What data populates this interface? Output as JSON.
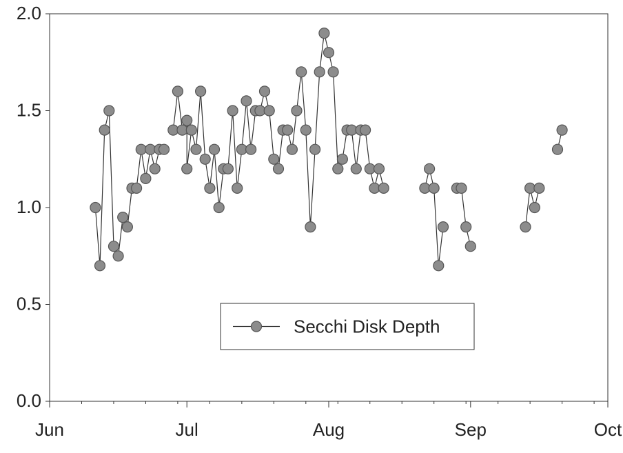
{
  "chart_data": {
    "type": "line",
    "title": "",
    "xlabel": "",
    "ylabel": "",
    "ylim": [
      0,
      2.0
    ],
    "xlim": [
      "Jun 1",
      "Oct 1"
    ],
    "grid": false,
    "legend_position": "bottom-center",
    "y_ticks": [
      "0.0",
      "0.5",
      "1.0",
      "1.5",
      "2.0"
    ],
    "x_ticks": [
      {
        "label": "Jun",
        "date": "Jun 1"
      },
      {
        "label": "Jul",
        "date": "Jul 1"
      },
      {
        "label": "Aug",
        "date": "Aug 1"
      },
      {
        "label": "Sep",
        "date": "Sep 1"
      },
      {
        "label": "Oct",
        "date": "Oct 1"
      }
    ],
    "colors": {
      "marker_fill": "#8c8c8c",
      "marker_stroke": "#555555",
      "line": "#333333",
      "axis": "#333333",
      "text": "#222222"
    },
    "series": [
      {
        "name": "Secchi Disk Depth",
        "segments": [
          [
            {
              "x": "Jun 11",
              "y": 1.0
            },
            {
              "x": "Jun 12",
              "y": 0.7
            },
            {
              "x": "Jun 13",
              "y": 1.4
            },
            {
              "x": "Jun 14",
              "y": 1.5
            },
            {
              "x": "Jun 15",
              "y": 0.8
            },
            {
              "x": "Jun 16",
              "y": 0.75
            },
            {
              "x": "Jun 17",
              "y": 0.95
            },
            {
              "x": "Jun 18",
              "y": 0.9
            },
            {
              "x": "Jun 19",
              "y": 1.1
            },
            {
              "x": "Jun 20",
              "y": 1.1
            },
            {
              "x": "Jun 21",
              "y": 1.3
            },
            {
              "x": "Jun 22",
              "y": 1.15
            },
            {
              "x": "Jun 23",
              "y": 1.3
            },
            {
              "x": "Jun 24",
              "y": 1.2
            },
            {
              "x": "Jun 25",
              "y": 1.3
            },
            {
              "x": "Jun 26",
              "y": 1.3
            }
          ],
          [
            {
              "x": "Jun 28",
              "y": 1.4
            },
            {
              "x": "Jun 29",
              "y": 1.6
            },
            {
              "x": "Jun 30",
              "y": 1.4
            },
            {
              "x": "Jun 31",
              "y": 1.45
            },
            {
              "x": "Jul 1",
              "y": 1.2
            },
            {
              "x": "Jul 2",
              "y": 1.4
            },
            {
              "x": "Jul 3",
              "y": 1.3
            },
            {
              "x": "Jul 4",
              "y": 1.6
            },
            {
              "x": "Jul 5",
              "y": 1.25
            },
            {
              "x": "Jul 6",
              "y": 1.1
            },
            {
              "x": "Jul 7",
              "y": 1.3
            },
            {
              "x": "Jul 8",
              "y": 1.0
            },
            {
              "x": "Jul 9",
              "y": 1.2
            },
            {
              "x": "Jul 10",
              "y": 1.2
            },
            {
              "x": "Jul 11",
              "y": 1.5
            },
            {
              "x": "Jul 12",
              "y": 1.1
            },
            {
              "x": "Jul 13",
              "y": 1.3
            },
            {
              "x": "Jul 14",
              "y": 1.55
            },
            {
              "x": "Jul 15",
              "y": 1.3
            },
            {
              "x": "Jul 16",
              "y": 1.5
            },
            {
              "x": "Jul 17",
              "y": 1.5
            },
            {
              "x": "Jul 18",
              "y": 1.6
            },
            {
              "x": "Jul 19",
              "y": 1.5
            },
            {
              "x": "Jul 20",
              "y": 1.25
            },
            {
              "x": "Jul 21",
              "y": 1.2
            },
            {
              "x": "Jul 22",
              "y": 1.4
            },
            {
              "x": "Jul 23",
              "y": 1.4
            },
            {
              "x": "Jul 24",
              "y": 1.3
            },
            {
              "x": "Jul 25",
              "y": 1.5
            },
            {
              "x": "Jul 26",
              "y": 1.7
            },
            {
              "x": "Jul 27",
              "y": 1.4
            },
            {
              "x": "Jul 28",
              "y": 0.9
            },
            {
              "x": "Jul 29",
              "y": 1.3
            },
            {
              "x": "Jul 30",
              "y": 1.7
            },
            {
              "x": "Jul 31",
              "y": 1.9
            },
            {
              "x": "Aug 1",
              "y": 1.8
            },
            {
              "x": "Aug 2",
              "y": 1.7
            },
            {
              "x": "Aug 3",
              "y": 1.2
            },
            {
              "x": "Aug 4",
              "y": 1.25
            },
            {
              "x": "Aug 5",
              "y": 1.4
            },
            {
              "x": "Aug 6",
              "y": 1.4
            },
            {
              "x": "Aug 7",
              "y": 1.2
            },
            {
              "x": "Aug 8",
              "y": 1.4
            },
            {
              "x": "Aug 9",
              "y": 1.4
            },
            {
              "x": "Aug 10",
              "y": 1.2
            },
            {
              "x": "Aug 11",
              "y": 1.1
            },
            {
              "x": "Aug 12",
              "y": 1.2
            },
            {
              "x": "Aug 13",
              "y": 1.1
            }
          ],
          [
            {
              "x": "Aug 22",
              "y": 1.1
            },
            {
              "x": "Aug 23",
              "y": 1.2
            },
            {
              "x": "Aug 24",
              "y": 1.1
            },
            {
              "x": "Aug 25",
              "y": 0.7
            },
            {
              "x": "Aug 26",
              "y": 0.9
            }
          ],
          [
            {
              "x": "Aug 29",
              "y": 1.1
            },
            {
              "x": "Aug 30",
              "y": 1.1
            },
            {
              "x": "Aug 31",
              "y": 0.9
            },
            {
              "x": "Sep 1",
              "y": 0.8
            }
          ],
          [
            {
              "x": "Sep 13",
              "y": 0.9
            },
            {
              "x": "Sep 14",
              "y": 1.1
            },
            {
              "x": "Sep 15",
              "y": 1.0
            },
            {
              "x": "Sep 16",
              "y": 1.1
            }
          ],
          [
            {
              "x": "Sep 20",
              "y": 1.3
            },
            {
              "x": "Sep 21",
              "y": 1.4
            }
          ]
        ]
      }
    ]
  }
}
